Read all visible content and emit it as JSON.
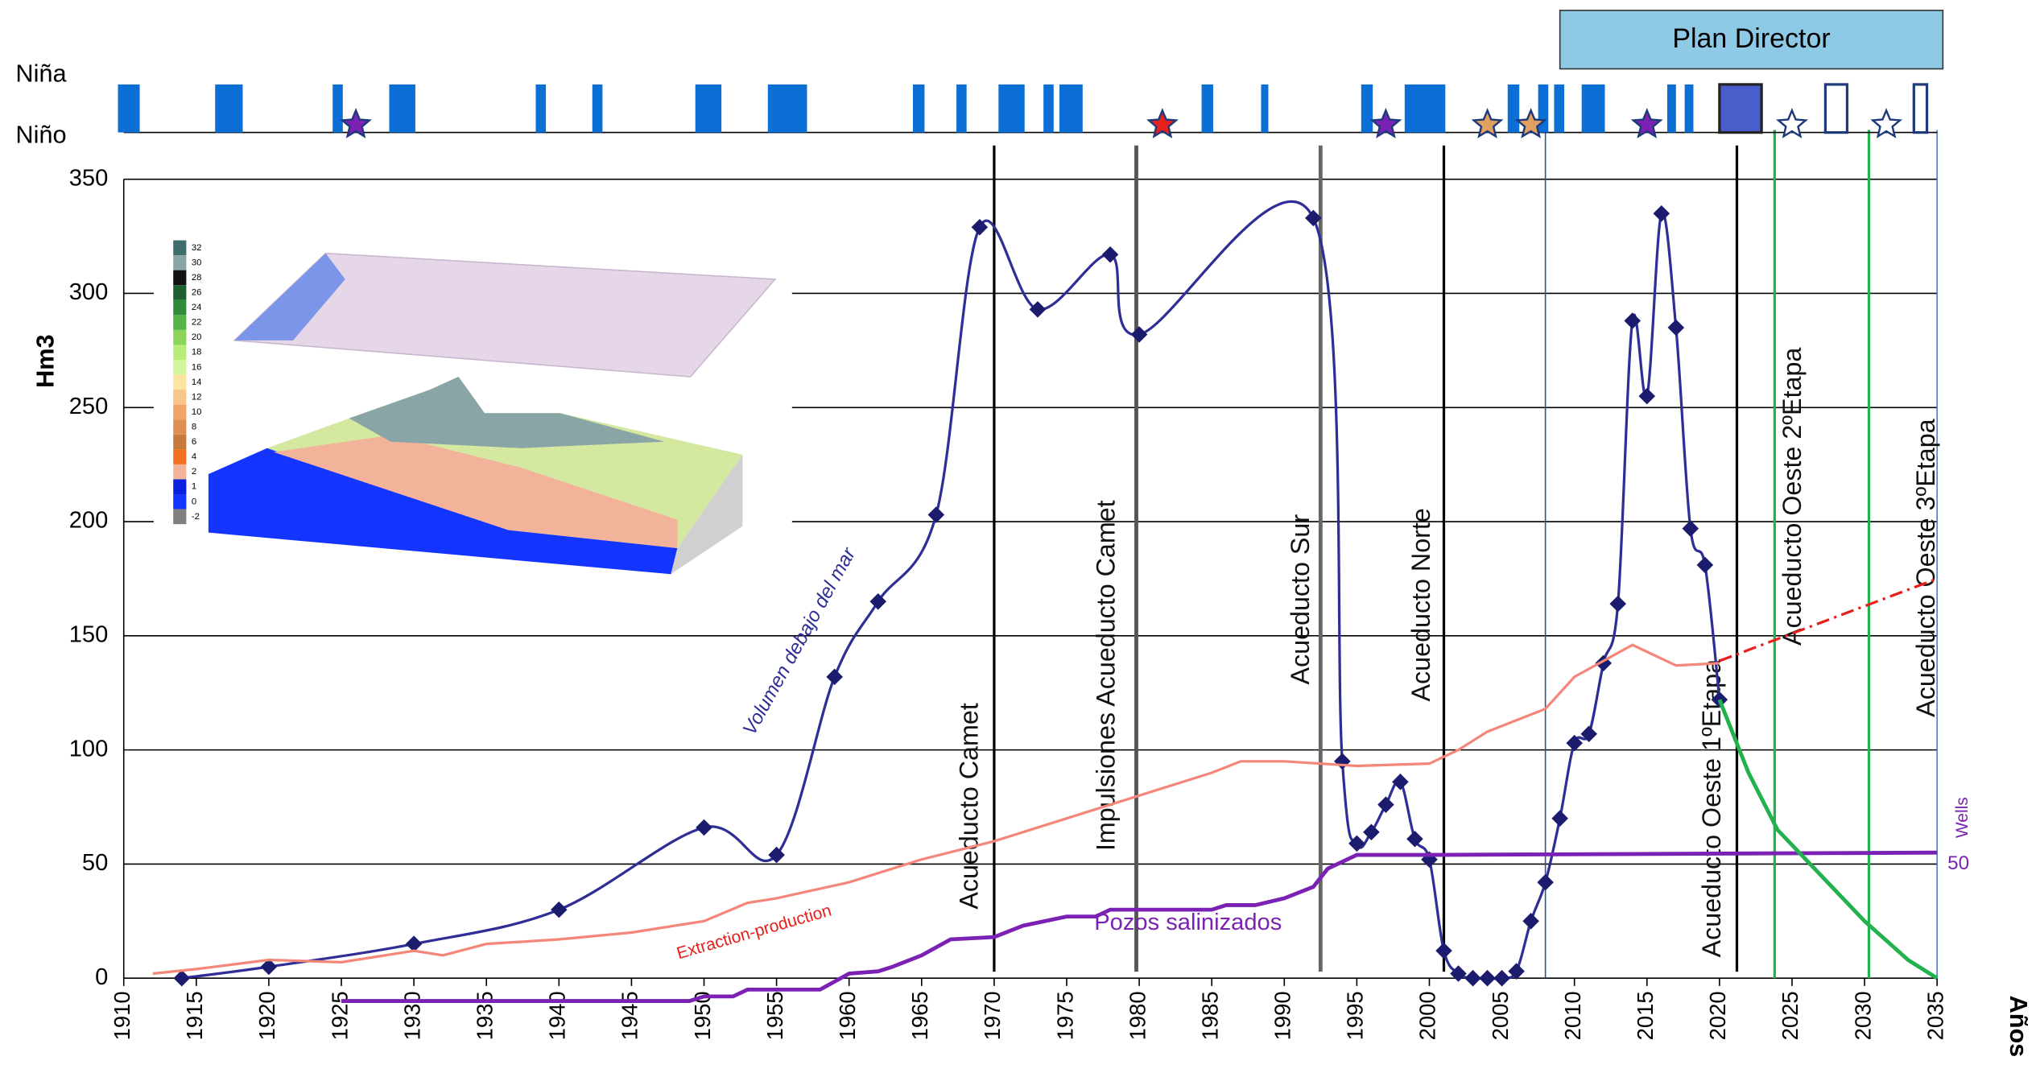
{
  "chart_data": {
    "type": "line",
    "y_label": "Hm3",
    "x_label": "Años",
    "xlim": [
      1910,
      2035
    ],
    "ylim": [
      0,
      350
    ],
    "xticks": [
      1910,
      1915,
      1920,
      1925,
      1930,
      1935,
      1940,
      1945,
      1950,
      1955,
      1960,
      1965,
      1970,
      1975,
      1980,
      1985,
      1990,
      1995,
      2000,
      2005,
      2010,
      2015,
      2020,
      2025,
      2030,
      2035
    ],
    "yticks": [
      0,
      50,
      100,
      150,
      200,
      250,
      300,
      350
    ],
    "grid": true,
    "series": [
      {
        "name": "Volumen debajo del mar",
        "color": "#2e2e96",
        "marker_color": "#1c1c6e",
        "markers": true,
        "x": [
          1914,
          1920,
          1930,
          1940,
          1950,
          1955,
          1959,
          1962,
          1966,
          1969,
          1973,
          1978,
          1980,
          1992,
          1994,
          1995,
          1996,
          1997,
          1998,
          1999,
          2000,
          2001,
          2002,
          2003,
          2004,
          2005,
          2006,
          2007,
          2008,
          2009,
          2010,
          2011,
          2012,
          2013,
          2014,
          2015,
          2016,
          2017,
          2018,
          2019,
          2020
        ],
        "values": [
          0,
          5,
          15,
          30,
          66,
          54,
          132,
          165,
          203,
          329,
          293,
          317,
          282,
          333,
          95,
          59,
          64,
          76,
          86,
          61,
          52,
          12,
          2,
          0,
          0,
          0,
          3,
          25,
          42,
          70,
          103,
          107,
          138,
          164,
          288,
          255,
          335,
          285,
          197,
          181,
          122
        ]
      },
      {
        "name": "Extraction-production",
        "color": "#f4877a",
        "markers": false,
        "x": [
          1912,
          1915,
          1920,
          1925,
          1930,
          1932,
          1935,
          1940,
          1945,
          1950,
          1953,
          1955,
          1960,
          1965,
          1970,
          1975,
          1980,
          1985,
          1987,
          1990,
          1995,
          2000,
          2002,
          2004,
          2008,
          2010,
          2014,
          2017,
          2020
        ],
        "values": [
          2,
          4,
          8,
          7,
          12,
          10,
          15,
          17,
          20,
          25,
          33,
          35,
          42,
          52,
          60,
          70,
          80,
          90,
          95,
          95,
          93,
          94,
          100,
          108,
          118,
          132,
          146,
          137,
          138
        ]
      },
      {
        "color": "#e8201c",
        "markers": false,
        "dashed": true,
        "x": [
          2020,
          2035
        ],
        "values": [
          139,
          175
        ]
      },
      {
        "name": "Pozos salinizados",
        "color": "#7b22b5",
        "markers": false,
        "width": 3,
        "x": [
          1925,
          1949,
          1950,
          1952,
          1953,
          1958,
          1960,
          1962,
          1963,
          1965,
          1967,
          1970,
          1972,
          1975,
          1977,
          1978,
          1985,
          1986,
          1988,
          1990,
          1992,
          1993,
          1995,
          2000,
          2035
        ],
        "values": [
          -10,
          -10,
          -8,
          -8,
          -5,
          -5,
          2,
          3,
          5,
          10,
          17,
          18,
          23,
          27,
          27,
          30,
          30,
          32,
          32,
          35,
          40,
          48,
          54,
          54,
          55
        ]
      },
      {
        "color": "#22b14c",
        "markers": false,
        "width": 3,
        "x": [
          2020,
          2022,
          2024,
          2027,
          2030,
          2033,
          2035
        ],
        "values": [
          122,
          90,
          65,
          45,
          25,
          8,
          0
        ]
      }
    ],
    "wells_annotation": {
      "label": "Wells",
      "value": 50,
      "color": "#7b22b5"
    },
    "events": [
      {
        "label": "Acueducto Camet",
        "year": 1970,
        "color": "#000000"
      },
      {
        "label": "Impulsiones Acueducto  Camet",
        "year": 1979.8,
        "color": "#555555"
      },
      {
        "label": "Acueducto Sur",
        "year": 1992.5,
        "color": "#666666"
      },
      {
        "label": "Acueducto Norte",
        "year": 2001,
        "color": "#000000"
      },
      {
        "label": "Acueducto Oeste  1ºEtapa",
        "year": 2021.2,
        "color": "#000000"
      },
      {
        "label": "Acueducto Oeste  2ºEtapa",
        "year": 2023.8,
        "color": "#22b14c"
      },
      {
        "label": "Acueducto Oeste  3ºEtapa",
        "year": 2030.3,
        "color": "#22b14c"
      }
    ],
    "reference_lines": [
      {
        "year": 2008,
        "color": "#2f5597"
      },
      {
        "year": 2035,
        "color": "#4f81bd"
      }
    ],
    "strip_labels": [
      "Niña",
      "Niño"
    ],
    "nina_color": "#0b6fd6",
    "nina_bars": [
      [
        1909.6,
        1911.1
      ],
      [
        1916.3,
        1918.2
      ],
      [
        1924.4,
        1925.1
      ],
      [
        1928.3,
        1930.1
      ],
      [
        1938.4,
        1939.1
      ],
      [
        1942.3,
        1943.0
      ],
      [
        1949.4,
        1951.2
      ],
      [
        1954.4,
        1957.1
      ],
      [
        1964.4,
        1965.2
      ],
      [
        1967.4,
        1968.1
      ],
      [
        1970.3,
        1972.1
      ],
      [
        1973.4,
        1974.1
      ],
      [
        1974.5,
        1976.1
      ],
      [
        1984.3,
        1985.1
      ],
      [
        1988.4,
        1988.9
      ],
      [
        1995.3,
        1996.1
      ],
      [
        1998.3,
        2001.1
      ],
      [
        2005.4,
        2006.2
      ],
      [
        2007.5,
        2008.2
      ],
      [
        2008.6,
        2009.3
      ],
      [
        2010.5,
        2012.1
      ],
      [
        2016.4,
        2017.0
      ],
      [
        2017.6,
        2018.2
      ]
    ],
    "planned_bars": [
      {
        "start": 2020.0,
        "end": 2022.9,
        "filled": true,
        "color": "#4a5ecb"
      },
      {
        "start": 2027.3,
        "end": 2028.8,
        "filled": false,
        "color": "#1f3a7a"
      },
      {
        "start": 2033.4,
        "end": 2034.3,
        "filled": false,
        "color": "#1f3a7a"
      }
    ],
    "nino_stars": [
      {
        "year": 1926,
        "color": "#7b22b5"
      },
      {
        "year": 1981.6,
        "color": "#e8201c"
      },
      {
        "year": 1997,
        "color": "#7b22b5"
      },
      {
        "year": 2004,
        "color": "#e0a060"
      },
      {
        "year": 2007,
        "color": "#e0a060"
      },
      {
        "year": 2015,
        "color": "#7b22b5"
      },
      {
        "year": 2025,
        "color": "#ffffff"
      },
      {
        "year": 2031.5,
        "color": "#ffffff"
      }
    ],
    "plan_box": {
      "label": "Plan Director",
      "start": 2009,
      "end": 2035.4,
      "color": "#8ecae6"
    },
    "inset_scale": {
      "values": [
        32,
        30,
        28,
        26,
        24,
        22,
        20,
        18,
        16,
        14,
        12,
        10,
        8,
        6,
        4,
        2,
        1,
        0,
        -2
      ],
      "colors": [
        "#3f6d6d",
        "#8aa5a5",
        "#111111",
        "#1d5e2f",
        "#2f8a3a",
        "#55b446",
        "#8fd45a",
        "#b8ec7a",
        "#d4f59a",
        "#ffe4a0",
        "#f8c58a",
        "#f2a468",
        "#e08d50",
        "#c87a3c",
        "#f07020",
        "#f2b39a",
        "#0b1fe0",
        "#1434ff",
        "#808080"
      ]
    }
  }
}
